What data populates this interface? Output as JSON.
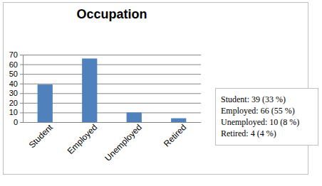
{
  "chart_data": {
    "type": "bar",
    "title": "Occupation",
    "categories": [
      "Student",
      "Employed",
      "Unemployed",
      "Retired"
    ],
    "values": [
      39,
      66,
      10,
      4
    ],
    "color": "#4f81bd",
    "ylim": [
      0,
      70
    ],
    "yticks": [
      0,
      10,
      20,
      30,
      40,
      50,
      60,
      70
    ],
    "grid": true,
    "annotations": [
      "Student: 39 (33 %)",
      "Employed: 66 (55 %)",
      "Unemployed: 10 (8 %)",
      "Retired: 4 (4 %)"
    ]
  }
}
